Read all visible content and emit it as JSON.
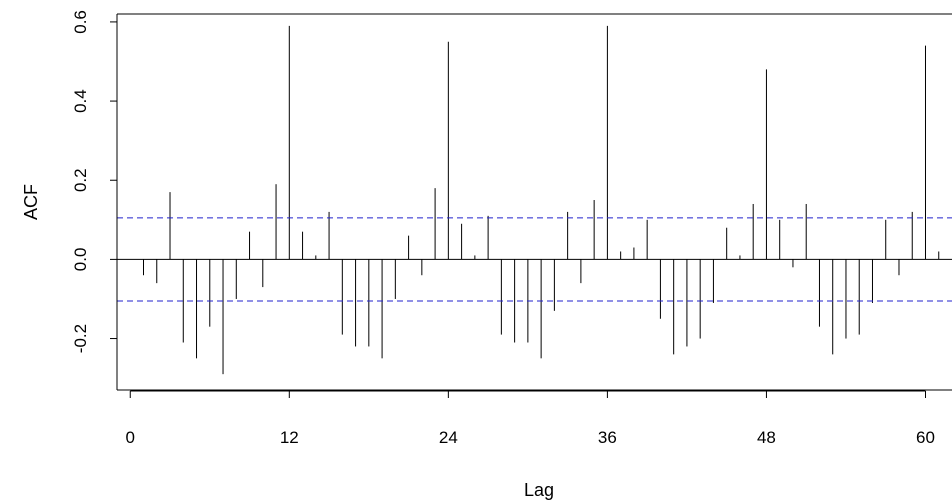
{
  "chart_data": {
    "type": "bar",
    "xlabel": "Lag",
    "ylabel": "ACF",
    "xlim": [
      -1,
      62
    ],
    "ylim": [
      -0.33,
      0.62
    ],
    "xticks": [
      "0",
      "12",
      "24",
      "36",
      "48",
      "60"
    ],
    "xtick_values": [
      0,
      12,
      24,
      36,
      48,
      60
    ],
    "yticks": [
      "-0.2",
      "0.0",
      "0.2",
      "0.4",
      "0.6"
    ],
    "ytick_values": [
      -0.2,
      0.0,
      0.2,
      0.4,
      0.6
    ],
    "confidence_band": [
      0.105,
      -0.105
    ],
    "colors": {
      "spike": "#000000",
      "band": "#2222cc",
      "axis": "#000000"
    },
    "lags": [
      1,
      2,
      3,
      4,
      5,
      6,
      7,
      8,
      9,
      10,
      11,
      12,
      13,
      14,
      15,
      16,
      17,
      18,
      19,
      20,
      21,
      22,
      23,
      24,
      25,
      26,
      27,
      28,
      29,
      30,
      31,
      32,
      33,
      34,
      35,
      36,
      37,
      38,
      39,
      40,
      41,
      42,
      43,
      44,
      45,
      46,
      47,
      48,
      49,
      50,
      51,
      52,
      53,
      54,
      55,
      56,
      57,
      58,
      59,
      60,
      61
    ],
    "values": [
      -0.04,
      -0.06,
      0.17,
      -0.21,
      -0.25,
      -0.17,
      -0.29,
      -0.1,
      0.07,
      -0.07,
      0.19,
      0.59,
      0.07,
      0.01,
      0.12,
      -0.19,
      -0.22,
      -0.22,
      -0.25,
      -0.1,
      0.06,
      -0.04,
      0.18,
      0.55,
      0.09,
      0.01,
      0.11,
      -0.19,
      -0.21,
      -0.21,
      -0.25,
      -0.13,
      0.12,
      -0.06,
      0.15,
      0.59,
      0.02,
      0.03,
      0.1,
      -0.15,
      -0.24,
      -0.22,
      -0.2,
      -0.11,
      0.08,
      0.01,
      0.14,
      0.48,
      0.1,
      -0.02,
      0.14,
      -0.17,
      -0.24,
      -0.2,
      -0.19,
      -0.11,
      0.1,
      -0.04,
      0.12,
      0.54,
      0.02
    ]
  }
}
